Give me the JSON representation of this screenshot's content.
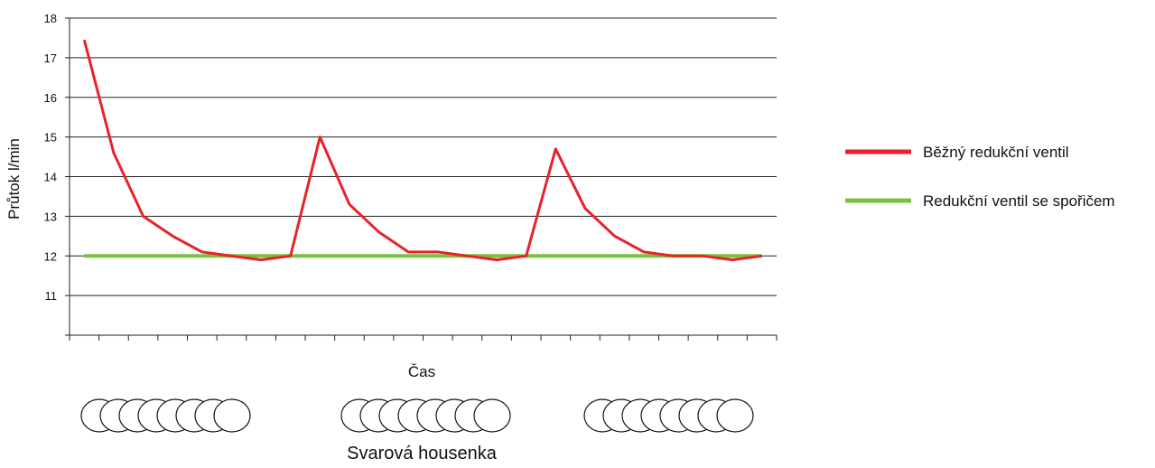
{
  "chart_data": {
    "type": "line",
    "title": "",
    "xlabel": "Čas",
    "ylabel": "Průtok l/min",
    "ylim": [
      10,
      18
    ],
    "yticks": [
      11,
      12,
      13,
      14,
      15,
      16,
      17,
      18
    ],
    "x_count": 24,
    "grid": true,
    "legend_position": "right",
    "series": [
      {
        "name": "Běžný redukční ventil",
        "color": "#e8222a",
        "values": [
          17.45,
          14.6,
          13.0,
          12.5,
          12.1,
          12.0,
          11.9,
          12.0,
          15.0,
          13.3,
          12.6,
          12.1,
          12.1,
          12.0,
          11.9,
          12.0,
          14.7,
          13.2,
          12.5,
          12.1,
          12.0,
          12.0,
          11.9,
          12.0
        ]
      },
      {
        "name": "Redukční ventil se spořičem",
        "color": "#79c143",
        "values": [
          12,
          12,
          12,
          12,
          12,
          12,
          12,
          12,
          12,
          12,
          12,
          12,
          12,
          12,
          12,
          12,
          12,
          12,
          12,
          12,
          12,
          12,
          12,
          12
        ]
      }
    ],
    "annotation": {
      "label": "Svarová housenka",
      "groups": 3,
      "beads_per_group": 8
    }
  }
}
